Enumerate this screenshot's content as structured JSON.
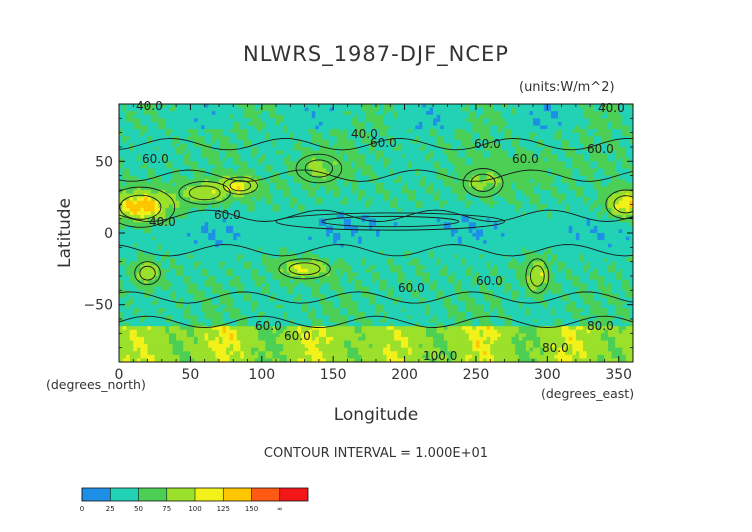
{
  "chart_data": {
    "type": "heatmap",
    "title": "NLWRS_1987-DJF_NCEP",
    "units": "(units:W/m^2)",
    "xlabel": "Longitude",
    "ylabel": "Latitude",
    "x_unit_label": "(degrees_east)",
    "y_unit_label": "(degrees_north)",
    "xlim": [
      0,
      360
    ],
    "ylim": [
      -90,
      90
    ],
    "x_ticks": [
      0,
      50,
      100,
      150,
      200,
      250,
      300,
      350
    ],
    "y_ticks": [
      -50,
      0,
      50
    ],
    "contour_interval_text": "CONTOUR INTERVAL = 1.000E+01",
    "contour_labels": [
      "40.0",
      "40.0",
      "40.0",
      "60.0",
      "60.0",
      "60.0",
      "60.0",
      "60.0",
      "40.0",
      "60.0",
      "60.0",
      "60.0",
      "60.0",
      "60.0",
      "80.0",
      "80.0",
      "100.0"
    ],
    "colorbar": {
      "ticks": [
        "0",
        "25",
        "50",
        "75",
        "100",
        "125",
        "150",
        "∞"
      ],
      "bin_colors": [
        "#1e8fe6",
        "#23d2b4",
        "#4ccf55",
        "#9be02a",
        "#f2f21a",
        "#ffc600",
        "#ff5a14",
        "#f4171a"
      ]
    }
  }
}
